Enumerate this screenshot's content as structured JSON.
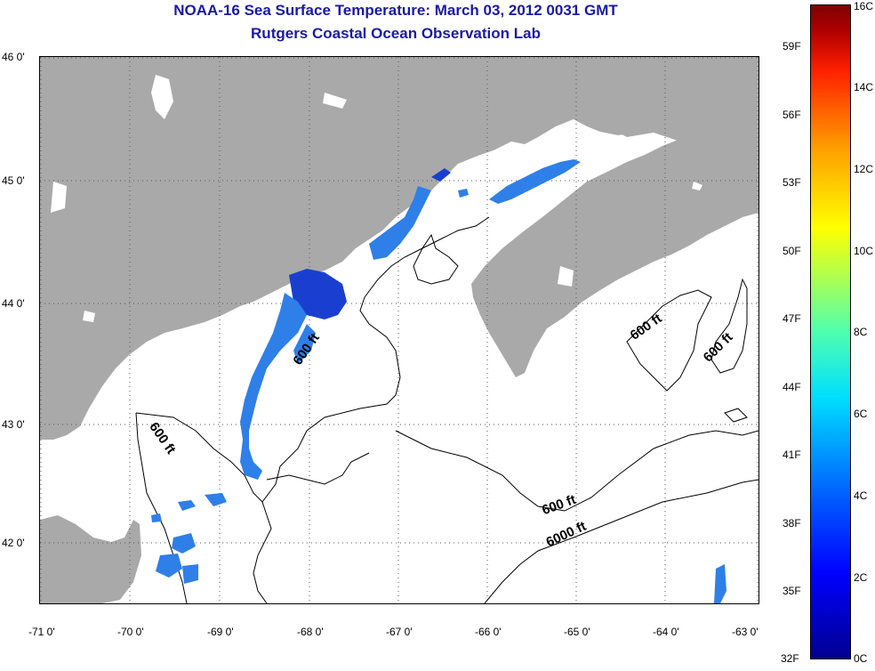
{
  "title": {
    "line1": "NOAA-16 Sea Surface Temperature:  March 03, 2012 0031 GMT",
    "line2": "Rutgers Coastal Ocean Observation Lab"
  },
  "axes": {
    "x_ticks": [
      "-71 0'",
      "-70 0'",
      "-69 0'",
      "-68 0'",
      "-67 0'",
      "-66 0'",
      "-65 0'",
      "-64 0'",
      "-63 0'"
    ],
    "y_ticks": [
      "46 0'",
      "45 0'",
      "44 0'",
      "43 0'",
      "42 0'"
    ],
    "lon_range": [
      -71,
      -63
    ],
    "lat_range": [
      41.5,
      46
    ]
  },
  "contour_labels": [
    "600 ft",
    "600 ft",
    "600 ft",
    "600 ft",
    "600 ft",
    "6000 ft"
  ],
  "colorbar": {
    "celsius": [
      "0C",
      "2C",
      "4C",
      "6C",
      "8C",
      "10C",
      "12C",
      "14C",
      "16C"
    ],
    "fahrenheit": [
      "32F",
      "35F",
      "38F",
      "41F",
      "44F",
      "47F",
      "50F",
      "53F",
      "56F",
      "59F"
    ],
    "colors": [
      "#00008f",
      "#0000ff",
      "#0070ff",
      "#00dfff",
      "#4fffaf",
      "#ffff00",
      "#ff9f00",
      "#ff2000",
      "#800000"
    ]
  },
  "colors": {
    "land": "#a9a9a9",
    "water": "#ffffff",
    "sst_cold": "#1a3fd0",
    "sst_mid": "#2f7fe8",
    "title": "#1a1aa6"
  }
}
